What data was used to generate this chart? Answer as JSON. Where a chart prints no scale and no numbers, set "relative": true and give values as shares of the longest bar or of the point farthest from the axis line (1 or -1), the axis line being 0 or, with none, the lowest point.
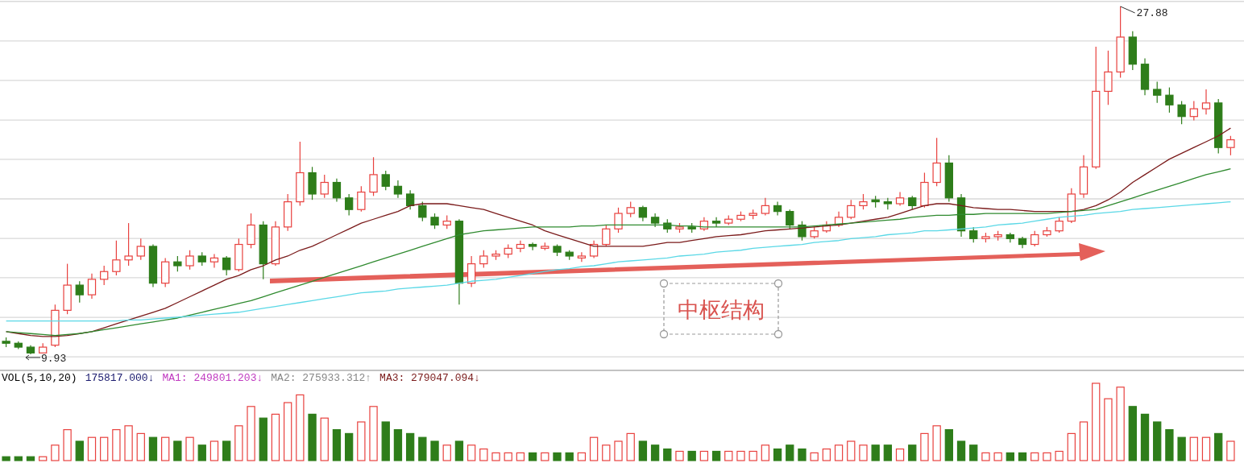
{
  "chart_data": [
    {
      "type": "candlestick",
      "categories": [
        null,
        null,
        null,
        null,
        null,
        null,
        null,
        null,
        null,
        null,
        null,
        null,
        null,
        null,
        null,
        null,
        null,
        null,
        null,
        null,
        null,
        null,
        null,
        null,
        null,
        null,
        null,
        null,
        null,
        null,
        null,
        null,
        null,
        null,
        null,
        null,
        null,
        null,
        null,
        null,
        null,
        null,
        null,
        null,
        null,
        null,
        null,
        null,
        null,
        null,
        null,
        null,
        null,
        null,
        null,
        null,
        null,
        null,
        null,
        null,
        null,
        null,
        null,
        null,
        null,
        null,
        null,
        null,
        null,
        null,
        null,
        null,
        null,
        null,
        null,
        null,
        null,
        null,
        null,
        null,
        null,
        null,
        null,
        null,
        null,
        null,
        null,
        null,
        null,
        null,
        null,
        null,
        null,
        null,
        null,
        null,
        null,
        null,
        null,
        null,
        null
      ],
      "ohlc": [
        [
          10.6,
          10.8,
          10.3,
          10.5
        ],
        [
          10.5,
          10.6,
          10.2,
          10.3
        ],
        [
          10.3,
          10.4,
          9.93,
          10.0
        ],
        [
          10.0,
          10.5,
          10.0,
          10.3
        ],
        [
          10.4,
          12.5,
          10.3,
          12.2
        ],
        [
          12.2,
          14.6,
          12.0,
          13.5
        ],
        [
          13.5,
          13.7,
          12.6,
          13.0
        ],
        [
          13.0,
          14.1,
          12.8,
          13.8
        ],
        [
          13.8,
          14.5,
          13.5,
          14.2
        ],
        [
          14.2,
          15.8,
          14.0,
          14.8
        ],
        [
          14.8,
          16.7,
          14.5,
          15.0
        ],
        [
          15.0,
          15.9,
          14.8,
          15.5
        ],
        [
          15.5,
          15.6,
          13.4,
          13.6
        ],
        [
          13.6,
          14.9,
          13.4,
          14.7
        ],
        [
          14.7,
          15.0,
          14.2,
          14.5
        ],
        [
          14.5,
          15.3,
          14.3,
          15.0
        ],
        [
          15.0,
          15.2,
          14.5,
          14.7
        ],
        [
          14.7,
          15.1,
          14.4,
          14.9
        ],
        [
          14.9,
          15.0,
          14.0,
          14.3
        ],
        [
          14.3,
          15.9,
          14.2,
          15.6
        ],
        [
          15.6,
          17.2,
          15.4,
          16.6
        ],
        [
          16.6,
          16.8,
          13.8,
          14.6
        ],
        [
          14.6,
          16.8,
          14.5,
          16.5
        ],
        [
          16.5,
          18.2,
          16.3,
          17.8
        ],
        [
          17.8,
          20.9,
          17.6,
          19.3
        ],
        [
          19.3,
          19.6,
          17.9,
          18.2
        ],
        [
          18.2,
          19.2,
          18.0,
          18.8
        ],
        [
          18.8,
          19.0,
          17.8,
          18.0
        ],
        [
          18.0,
          18.2,
          17.1,
          17.4
        ],
        [
          17.4,
          18.6,
          17.3,
          18.3
        ],
        [
          18.3,
          20.1,
          18.1,
          19.2
        ],
        [
          19.2,
          19.4,
          18.4,
          18.6
        ],
        [
          18.6,
          18.9,
          18.0,
          18.2
        ],
        [
          18.2,
          18.4,
          17.4,
          17.6
        ],
        [
          17.6,
          17.8,
          16.8,
          17.0
        ],
        [
          17.0,
          17.2,
          16.4,
          16.6
        ],
        [
          16.6,
          17.1,
          16.4,
          16.8
        ],
        [
          16.8,
          16.9,
          12.5,
          13.6
        ],
        [
          13.6,
          15.0,
          13.4,
          14.6
        ],
        [
          14.6,
          15.3,
          14.4,
          15.0
        ],
        [
          15.0,
          15.3,
          14.8,
          15.1
        ],
        [
          15.1,
          15.6,
          14.9,
          15.4
        ],
        [
          15.4,
          15.8,
          15.2,
          15.6
        ],
        [
          15.6,
          15.7,
          15.3,
          15.5
        ],
        [
          15.4,
          15.7,
          15.3,
          15.5
        ],
        [
          15.5,
          15.6,
          15.0,
          15.2
        ],
        [
          15.2,
          15.3,
          14.8,
          15.0
        ],
        [
          14.9,
          15.2,
          14.7,
          15.0
        ],
        [
          15.0,
          15.8,
          14.9,
          15.6
        ],
        [
          15.6,
          16.6,
          15.5,
          16.4
        ],
        [
          16.4,
          17.5,
          16.2,
          17.2
        ],
        [
          17.2,
          17.8,
          17.0,
          17.5
        ],
        [
          17.5,
          17.6,
          16.8,
          17.0
        ],
        [
          17.0,
          17.2,
          16.5,
          16.7
        ],
        [
          16.7,
          16.9,
          16.2,
          16.4
        ],
        [
          16.4,
          16.7,
          16.2,
          16.5
        ],
        [
          16.5,
          16.7,
          16.2,
          16.4
        ],
        [
          16.4,
          17.0,
          16.3,
          16.8
        ],
        [
          16.8,
          17.0,
          16.5,
          16.7
        ],
        [
          16.7,
          17.1,
          16.6,
          16.9
        ],
        [
          16.9,
          17.3,
          16.8,
          17.1
        ],
        [
          17.1,
          17.4,
          16.9,
          17.2
        ],
        [
          17.2,
          18.0,
          17.1,
          17.6
        ],
        [
          17.6,
          17.8,
          17.1,
          17.3
        ],
        [
          17.3,
          17.4,
          16.4,
          16.6
        ],
        [
          16.6,
          16.8,
          15.8,
          16.0
        ],
        [
          16.0,
          16.5,
          15.9,
          16.3
        ],
        [
          16.3,
          16.8,
          16.2,
          16.6
        ],
        [
          16.6,
          17.3,
          16.5,
          17.0
        ],
        [
          17.0,
          17.9,
          16.9,
          17.6
        ],
        [
          17.6,
          18.2,
          17.4,
          17.8
        ],
        [
          17.9,
          18.1,
          17.5,
          17.8
        ],
        [
          17.8,
          18.0,
          17.4,
          17.7
        ],
        [
          17.7,
          18.3,
          17.6,
          18.0
        ],
        [
          18.0,
          18.1,
          17.4,
          17.6
        ],
        [
          17.6,
          19.3,
          17.5,
          18.8
        ],
        [
          18.8,
          21.1,
          18.6,
          19.8
        ],
        [
          19.8,
          20.2,
          17.8,
          18.0
        ],
        [
          18.0,
          18.2,
          16.0,
          16.3
        ],
        [
          16.3,
          16.5,
          15.7,
          15.9
        ],
        [
          15.9,
          16.2,
          15.7,
          16.0
        ],
        [
          16.0,
          16.3,
          15.8,
          16.1
        ],
        [
          16.1,
          16.2,
          15.7,
          15.9
        ],
        [
          15.9,
          16.0,
          15.4,
          15.6
        ],
        [
          15.6,
          16.3,
          15.5,
          16.1
        ],
        [
          16.1,
          16.5,
          16.0,
          16.3
        ],
        [
          16.3,
          17.0,
          16.2,
          16.8
        ],
        [
          16.8,
          18.5,
          16.7,
          18.2
        ],
        [
          18.2,
          20.2,
          18.0,
          19.6
        ],
        [
          19.6,
          25.8,
          19.5,
          23.5
        ],
        [
          23.5,
          25.6,
          22.8,
          24.5
        ],
        [
          24.5,
          27.88,
          24.2,
          26.3
        ],
        [
          26.3,
          26.6,
          24.6,
          24.9
        ],
        [
          24.9,
          25.2,
          23.3,
          23.6
        ],
        [
          23.6,
          24.0,
          22.9,
          23.3
        ],
        [
          23.3,
          23.7,
          22.4,
          22.8
        ],
        [
          22.8,
          23.0,
          21.8,
          22.2
        ],
        [
          22.2,
          23.0,
          22.0,
          22.6
        ],
        [
          22.6,
          23.6,
          22.3,
          22.9
        ],
        [
          22.9,
          23.1,
          20.3,
          20.6
        ],
        [
          20.6,
          21.2,
          20.2,
          21.0
        ]
      ],
      "colors": [
        "#2e7d1a",
        "#2e7d1a",
        "#2e7d1a",
        "#e8413e",
        "#e8413e",
        "#e8413e",
        "#2e7d1a",
        "#e8413e",
        "#e8413e",
        "#e8413e",
        "#e8413e",
        "#e8413e",
        "#2e7d1a",
        "#e8413e",
        "#2e7d1a",
        "#e8413e",
        "#2e7d1a",
        "#e8413e",
        "#2e7d1a",
        "#e8413e",
        "#e8413e",
        "#2e7d1a",
        "#e8413e",
        "#e8413e",
        "#e8413e",
        "#2e7d1a",
        "#e8413e",
        "#2e7d1a",
        "#2e7d1a",
        "#e8413e",
        "#e8413e",
        "#2e7d1a",
        "#2e7d1a",
        "#2e7d1a",
        "#2e7d1a",
        "#2e7d1a",
        "#e8413e",
        "#2e7d1a",
        "#e8413e",
        "#e8413e",
        "#e8413e",
        "#e8413e",
        "#e8413e",
        "#2e7d1a",
        "#e8413e",
        "#2e7d1a",
        "#2e7d1a",
        "#e8413e",
        "#e8413e",
        "#e8413e",
        "#e8413e",
        "#e8413e",
        "#2e7d1a",
        "#2e7d1a",
        "#2e7d1a",
        "#e8413e",
        "#2e7d1a",
        "#e8413e",
        "#2e7d1a",
        "#e8413e",
        "#e8413e",
        "#e8413e",
        "#e8413e",
        "#2e7d1a",
        "#2e7d1a",
        "#2e7d1a",
        "#e8413e",
        "#e8413e",
        "#e8413e",
        "#e8413e",
        "#e8413e",
        "#2e7d1a",
        "#2e7d1a",
        "#e8413e",
        "#2e7d1a",
        "#e8413e",
        "#e8413e",
        "#2e7d1a",
        "#2e7d1a",
        "#2e7d1a",
        "#e8413e",
        "#e8413e",
        "#2e7d1a",
        "#2e7d1a",
        "#e8413e",
        "#e8413e",
        "#e8413e",
        "#e8413e",
        "#e8413e",
        "#e8413e",
        "#e8413e",
        "#e8413e",
        "#2e7d1a",
        "#2e7d1a",
        "#2e7d1a",
        "#2e7d1a",
        "#2e7d1a",
        "#e8413e",
        "#e8413e",
        "#2e7d1a",
        "#e8413e"
      ],
      "series": [
        {
          "type": "line",
          "color": "#7a1a1a",
          "values": [
            11.1,
            11.0,
            10.9,
            10.85,
            10.85,
            10.9,
            11.0,
            11.1,
            11.3,
            11.5,
            11.7,
            11.9,
            12.1,
            12.3,
            12.6,
            12.9,
            13.2,
            13.5,
            13.8,
            14.0,
            14.3,
            14.5,
            14.8,
            15.0,
            15.3,
            15.5,
            15.8,
            16.1,
            16.4,
            16.7,
            16.9,
            17.1,
            17.3,
            17.6,
            17.7,
            17.7,
            17.7,
            17.6,
            17.5,
            17.4,
            17.2,
            17.0,
            16.8,
            16.6,
            16.3,
            16.1,
            15.9,
            15.7,
            15.5,
            15.5,
            15.5,
            15.5,
            15.5,
            15.6,
            15.7,
            15.7,
            15.8,
            15.9,
            16.0,
            16.05,
            16.1,
            16.2,
            16.3,
            16.35,
            16.4,
            16.45,
            16.5,
            16.55,
            16.6,
            16.7,
            16.8,
            16.9,
            17.0,
            17.2,
            17.4,
            17.6,
            17.7,
            17.7,
            17.6,
            17.5,
            17.45,
            17.4,
            17.4,
            17.35,
            17.3,
            17.3,
            17.3,
            17.3,
            17.4,
            17.6,
            17.9,
            18.3,
            18.8,
            19.2,
            19.6,
            20.0,
            20.3,
            20.6,
            20.9,
            21.2,
            21.6
          ]
        },
        {
          "type": "line",
          "color": "#2f8a2f",
          "values": [
            11.1,
            11.05,
            11.0,
            10.95,
            10.9,
            10.95,
            11.0,
            11.1,
            11.2,
            11.3,
            11.4,
            11.5,
            11.6,
            11.7,
            11.8,
            11.95,
            12.1,
            12.25,
            12.4,
            12.55,
            12.7,
            12.9,
            13.1,
            13.3,
            13.5,
            13.7,
            13.9,
            14.1,
            14.3,
            14.5,
            14.7,
            14.9,
            15.1,
            15.3,
            15.5,
            15.7,
            15.9,
            16.1,
            16.2,
            16.3,
            16.35,
            16.4,
            16.45,
            16.5,
            16.5,
            16.5,
            16.5,
            16.55,
            16.55,
            16.6,
            16.6,
            16.6,
            16.6,
            16.6,
            16.6,
            16.55,
            16.55,
            16.5,
            16.5,
            16.5,
            16.5,
            16.5,
            16.5,
            16.5,
            16.5,
            16.5,
            16.55,
            16.6,
            16.65,
            16.7,
            16.75,
            16.8,
            16.85,
            16.9,
            17.0,
            17.05,
            17.1,
            17.1,
            17.15,
            17.15,
            17.2,
            17.2,
            17.2,
            17.2,
            17.2,
            17.2,
            17.25,
            17.3,
            17.35,
            17.4,
            17.6,
            17.8,
            18.0,
            18.2,
            18.4,
            18.6,
            18.8,
            19.0,
            19.2,
            19.35,
            19.5
          ]
        },
        {
          "type": "line",
          "color": "#5ad8e6",
          "values": [
            11.65,
            11.65,
            11.65,
            11.65,
            11.65,
            11.65,
            11.65,
            11.65,
            11.65,
            11.65,
            11.7,
            11.7,
            11.75,
            11.8,
            11.85,
            11.9,
            11.95,
            12.0,
            12.05,
            12.1,
            12.2,
            12.3,
            12.4,
            12.5,
            12.6,
            12.7,
            12.8,
            12.9,
            13.0,
            13.1,
            13.15,
            13.2,
            13.3,
            13.35,
            13.4,
            13.45,
            13.5,
            13.6,
            13.7,
            13.75,
            13.8,
            13.9,
            14.0,
            14.1,
            14.2,
            14.3,
            14.35,
            14.45,
            14.5,
            14.6,
            14.7,
            14.75,
            14.8,
            14.85,
            14.9,
            15.0,
            15.05,
            15.1,
            15.2,
            15.25,
            15.3,
            15.4,
            15.45,
            15.5,
            15.55,
            15.6,
            15.7,
            15.75,
            15.8,
            15.9,
            15.95,
            16.0,
            16.1,
            16.15,
            16.2,
            16.3,
            16.3,
            16.35,
            16.4,
            16.45,
            16.5,
            16.6,
            16.65,
            16.7,
            16.8,
            16.9,
            17.0,
            17.05,
            17.1,
            17.2,
            17.25,
            17.3,
            17.4,
            17.45,
            17.5,
            17.55,
            17.6,
            17.65,
            17.7,
            17.75,
            17.8
          ]
        }
      ],
      "yticks": [
        {
          "value": 9.8,
          "label": null
        },
        {
          "value": 11.84,
          "label": null
        },
        {
          "value": 13.88,
          "label": null
        },
        {
          "value": 15.91,
          "label": null
        },
        {
          "value": 17.95,
          "label": null
        },
        {
          "value": 19.99,
          "label": null
        },
        {
          "value": 22.02,
          "label": null
        },
        {
          "value": 24.06,
          "label": null
        },
        {
          "value": 26.1,
          "label": null
        },
        {
          "value": 28.14,
          "label": null
        }
      ],
      "grid": "y",
      "tick_labels": false,
      "annotations": [
        "27.88",
        "9.93",
        "中枢结构"
      ]
    },
    {
      "type": "bar",
      "relative": true,
      "categories": [
        null,
        null,
        null,
        null,
        null,
        null,
        null,
        null,
        null,
        null,
        null,
        null,
        null,
        null,
        null,
        null,
        null,
        null,
        null,
        null,
        null,
        null,
        null,
        null,
        null,
        null,
        null,
        null,
        null,
        null,
        null,
        null,
        null,
        null,
        null,
        null,
        null,
        null,
        null,
        null,
        null,
        null,
        null,
        null,
        null,
        null,
        null,
        null,
        null,
        null,
        null,
        null,
        null,
        null,
        null,
        null,
        null,
        null,
        null,
        null,
        null,
        null,
        null,
        null,
        null,
        null,
        null,
        null,
        null,
        null,
        null,
        null,
        null,
        null,
        null,
        null,
        null,
        null,
        null,
        null,
        null,
        null,
        null,
        null,
        null,
        null,
        null,
        null,
        null,
        null,
        null,
        null,
        null,
        null,
        null,
        null,
        null,
        null,
        null,
        null,
        null
      ],
      "values": [
        0.05,
        0.05,
        0.05,
        0.05,
        0.2,
        0.4,
        0.25,
        0.3,
        0.3,
        0.4,
        0.45,
        0.35,
        0.3,
        0.3,
        0.25,
        0.3,
        0.2,
        0.25,
        0.25,
        0.45,
        0.7,
        0.55,
        0.6,
        0.75,
        0.85,
        0.6,
        0.55,
        0.4,
        0.35,
        0.5,
        0.7,
        0.5,
        0.4,
        0.35,
        0.3,
        0.25,
        0.2,
        0.25,
        0.2,
        0.15,
        0.1,
        0.1,
        0.1,
        0.1,
        0.1,
        0.1,
        0.1,
        0.1,
        0.3,
        0.2,
        0.25,
        0.35,
        0.25,
        0.2,
        0.15,
        0.12,
        0.12,
        0.12,
        0.12,
        0.12,
        0.12,
        0.12,
        0.2,
        0.15,
        0.2,
        0.15,
        0.1,
        0.15,
        0.2,
        0.25,
        0.2,
        0.2,
        0.2,
        0.15,
        0.2,
        0.35,
        0.45,
        0.4,
        0.25,
        0.2,
        0.1,
        0.1,
        0.1,
        0.1,
        0.1,
        0.1,
        0.12,
        0.35,
        0.5,
        1,
        0.8,
        0.95,
        0.7,
        0.6,
        0.5,
        0.4,
        0.3,
        0.3,
        0.3,
        0.35,
        0.25
      ],
      "colors": [
        "#2e7d1a",
        "#2e7d1a",
        "#2e7d1a",
        "#e8413e",
        "#e8413e",
        "#e8413e",
        "#2e7d1a",
        "#e8413e",
        "#e8413e",
        "#e8413e",
        "#e8413e",
        "#e8413e",
        "#2e7d1a",
        "#e8413e",
        "#2e7d1a",
        "#e8413e",
        "#2e7d1a",
        "#e8413e",
        "#2e7d1a",
        "#e8413e",
        "#e8413e",
        "#2e7d1a",
        "#e8413e",
        "#e8413e",
        "#e8413e",
        "#2e7d1a",
        "#e8413e",
        "#2e7d1a",
        "#2e7d1a",
        "#e8413e",
        "#e8413e",
        "#2e7d1a",
        "#2e7d1a",
        "#2e7d1a",
        "#2e7d1a",
        "#2e7d1a",
        "#e8413e",
        "#2e7d1a",
        "#e8413e",
        "#e8413e",
        "#e8413e",
        "#e8413e",
        "#e8413e",
        "#2e7d1a",
        "#e8413e",
        "#2e7d1a",
        "#2e7d1a",
        "#e8413e",
        "#e8413e",
        "#e8413e",
        "#e8413e",
        "#e8413e",
        "#2e7d1a",
        "#2e7d1a",
        "#2e7d1a",
        "#e8413e",
        "#2e7d1a",
        "#e8413e",
        "#2e7d1a",
        "#e8413e",
        "#e8413e",
        "#e8413e",
        "#e8413e",
        "#2e7d1a",
        "#2e7d1a",
        "#2e7d1a",
        "#e8413e",
        "#e8413e",
        "#e8413e",
        "#e8413e",
        "#e8413e",
        "#2e7d1a",
        "#2e7d1a",
        "#e8413e",
        "#2e7d1a",
        "#e8413e",
        "#e8413e",
        "#2e7d1a",
        "#2e7d1a",
        "#2e7d1a",
        "#e8413e",
        "#e8413e",
        "#2e7d1a",
        "#2e7d1a",
        "#e8413e",
        "#e8413e",
        "#e8413e",
        "#e8413e",
        "#e8413e",
        "#e8413e",
        "#e8413e",
        "#e8413e",
        "#2e7d1a",
        "#2e7d1a",
        "#2e7d1a",
        "#2e7d1a",
        "#2e7d1a",
        "#e8413e",
        "#e8413e",
        "#2e7d1a",
        "#e8413e"
      ],
      "annotations": [
        "VOL(5,10,20)",
        "175817.000↓",
        "MA1: 249801.203↓",
        "MA2: 275933.312↑",
        "MA3: 279047.094↓"
      ]
    }
  ]
}
